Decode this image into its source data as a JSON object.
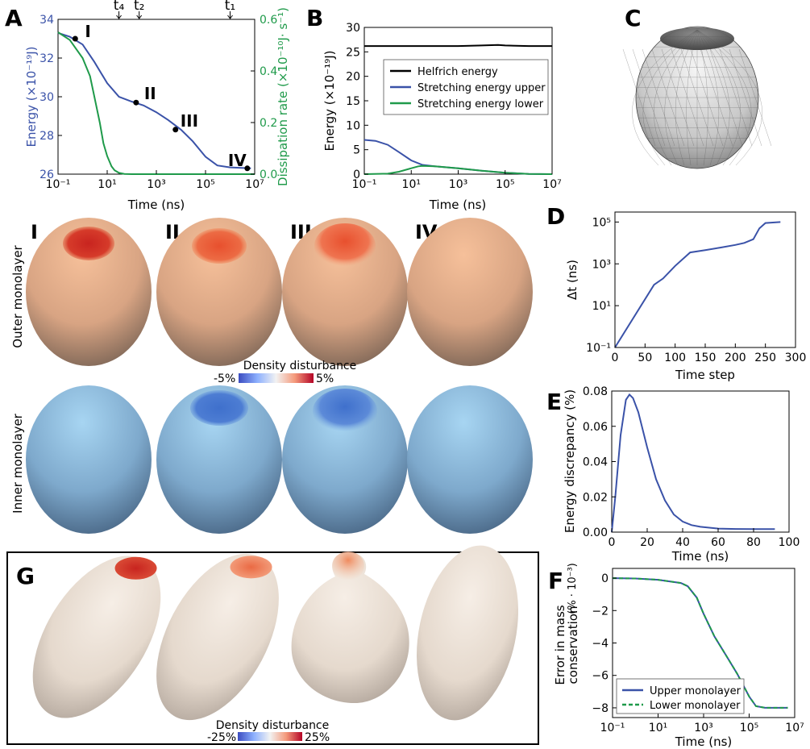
{
  "panels": {
    "A": {
      "label": "A",
      "xlabel": "Time (ns)",
      "ylabel_left": "Energy (×10⁻¹⁹J)",
      "ylabel_right": "Dissipation rate (×10⁻¹⁰J· s⁻¹)",
      "xticks": [
        "10⁻¹",
        "10¹",
        "10³",
        "10⁵",
        "10⁷"
      ],
      "yticks_left": [
        "26",
        "28",
        "30",
        "32",
        "34"
      ],
      "yticks_right": [
        "0.0",
        "0.2",
        "0.4",
        "0.6"
      ],
      "time_marks": [
        "t₄",
        "t₂",
        "t₁"
      ],
      "points": [
        "I",
        "II",
        "III",
        "IV"
      ],
      "colors": {
        "energy": "#3a52a8",
        "dissipation": "#1f9a4a"
      }
    },
    "B": {
      "label": "B",
      "xlabel": "Time (ns)",
      "ylabel": "Energy (×10⁻¹⁹J)",
      "xticks": [
        "10⁻¹",
        "10¹",
        "10³",
        "10⁵",
        "10⁷"
      ],
      "yticks": [
        "0",
        "5",
        "10",
        "15",
        "20",
        "25",
        "30"
      ],
      "legend": [
        "Helfrich energy",
        "Stretching energy upper",
        "Stretching energy lower"
      ],
      "colors": [
        "#000000",
        "#3a52a8",
        "#1f9a4a"
      ]
    },
    "C": {
      "label": "C"
    },
    "D": {
      "label": "D",
      "xlabel": "Time step",
      "ylabel": "Δt (ns)",
      "xticks": [
        "0",
        "50",
        "100",
        "150",
        "200",
        "250",
        "300"
      ],
      "yticks": [
        "10⁻¹",
        "10¹",
        "10³",
        "10⁵"
      ]
    },
    "E": {
      "label": "E",
      "xlabel": "Time (ns)",
      "ylabel": "Energy discrepancy (%)",
      "xticks": [
        "0",
        "20",
        "40",
        "60",
        "80",
        "100"
      ],
      "yticks": [
        "0.00",
        "0.02",
        "0.04",
        "0.06",
        "0.08"
      ]
    },
    "F": {
      "label": "F",
      "xlabel": "Time (ns)",
      "ylabel_line1": "Error in mass",
      "ylabel_line2": "conservation",
      "ylabel_unit": "(% · 10⁻³)",
      "xticks": [
        "10⁻¹",
        "10¹",
        "10³",
        "10⁵",
        "10⁷"
      ],
      "yticks": [
        "0",
        "−2",
        "−4",
        "−6",
        "−8"
      ],
      "legend": [
        "Upper monolayer",
        "Lower monolayer"
      ]
    },
    "G": {
      "label": "G",
      "colorbar_title": "Density disturbance",
      "colorbar_min": "-25%",
      "colorbar_max": "25%"
    }
  },
  "vesicles": {
    "stages": [
      "I",
      "II",
      "III",
      "IV"
    ],
    "outer_label": "Outer monolayer",
    "inner_label": "Inner monolayer",
    "colorbar_title": "Density disturbance",
    "colorbar_min": "-5%",
    "colorbar_max": "5%"
  },
  "chart_data": [
    {
      "panel": "A",
      "type": "line",
      "xscale": "log",
      "xlim": [
        0.1,
        10000000
      ],
      "series": [
        {
          "axis": "left",
          "ylim": [
            26,
            34
          ],
          "x": [
            0.1,
            0.3,
            1,
            3,
            10,
            30,
            100,
            300,
            1000,
            3000,
            10000,
            30000,
            100000,
            300000,
            1000000,
            3000000,
            7000000
          ],
          "y": [
            33.3,
            33.1,
            32.7,
            31.8,
            30.7,
            30.0,
            29.75,
            29.55,
            29.2,
            28.8,
            28.3,
            27.7,
            26.9,
            26.45,
            26.35,
            26.32,
            26.3
          ]
        },
        {
          "axis": "right",
          "ylim": [
            0,
            0.6
          ],
          "x": [
            0.1,
            0.3,
            1,
            2,
            3,
            5,
            7,
            10,
            15,
            20,
            30,
            50,
            100,
            1000,
            10000000
          ],
          "y": [
            0.55,
            0.52,
            0.45,
            0.38,
            0.3,
            0.2,
            0.12,
            0.07,
            0.03,
            0.015,
            0.005,
            0.001,
            0,
            0,
            0
          ]
        }
      ],
      "annotations": [
        {
          "text": "I",
          "x": 0.5,
          "y": 33.0
        },
        {
          "text": "II",
          "x": 150,
          "y": 29.7
        },
        {
          "text": "III",
          "x": 6000,
          "y": 28.3
        },
        {
          "text": "IV",
          "x": 5000000,
          "y": 26.3
        }
      ],
      "time_marks_x": [
        30,
        200,
        1000000
      ]
    },
    {
      "panel": "B",
      "type": "line",
      "xscale": "log",
      "xlim": [
        0.1,
        10000000
      ],
      "ylim": [
        0,
        30
      ],
      "series": [
        {
          "name": "Helfrich energy",
          "x": [
            0.1,
            1,
            10,
            100,
            1000,
            10000,
            50000,
            100000,
            1000000,
            10000000
          ],
          "y": [
            26.2,
            26.2,
            26.2,
            26.2,
            26.2,
            26.3,
            26.4,
            26.3,
            26.2,
            26.2
          ]
        },
        {
          "name": "Stretching energy upper",
          "x": [
            0.1,
            0.3,
            1,
            3,
            10,
            30,
            100,
            1000,
            10000,
            100000,
            1000000,
            10000000
          ],
          "y": [
            7.0,
            6.8,
            6.0,
            4.5,
            2.8,
            1.9,
            1.6,
            1.2,
            0.7,
            0.3,
            0.05,
            0
          ]
        },
        {
          "name": "Stretching energy lower",
          "x": [
            0.1,
            1,
            3,
            10,
            20,
            30,
            100,
            1000,
            10000,
            100000,
            1000000,
            10000000
          ],
          "y": [
            0,
            0.1,
            0.5,
            1.2,
            1.6,
            1.7,
            1.6,
            1.2,
            0.7,
            0.3,
            0.05,
            0
          ]
        }
      ]
    },
    {
      "panel": "D",
      "type": "line",
      "yscale": "log",
      "xlim": [
        0,
        300
      ],
      "ylim": [
        0.1,
        300000
      ],
      "series": [
        {
          "x": [
            0,
            65,
            80,
            100,
            125,
            150,
            175,
            200,
            215,
            230,
            240,
            250,
            275
          ],
          "y": [
            0.1,
            100,
            200,
            800,
            3500,
            4500,
            6000,
            8000,
            10000,
            15000,
            50000,
            90000,
            100000
          ]
        }
      ]
    },
    {
      "panel": "E",
      "type": "line",
      "xlim": [
        0,
        100
      ],
      "ylim": [
        0,
        0.08
      ],
      "series": [
        {
          "x": [
            0,
            2,
            5,
            8,
            10,
            12,
            15,
            20,
            25,
            30,
            35,
            40,
            45,
            50,
            60,
            70,
            80,
            92
          ],
          "y": [
            0,
            0.02,
            0.055,
            0.075,
            0.078,
            0.076,
            0.068,
            0.048,
            0.03,
            0.018,
            0.01,
            0.006,
            0.004,
            0.003,
            0.002,
            0.0018,
            0.0017,
            0.0017
          ]
        }
      ]
    },
    {
      "panel": "F",
      "type": "line",
      "xscale": "log",
      "xlim": [
        0.1,
        10000000
      ],
      "ylim": [
        -8.6,
        0.6
      ],
      "series": [
        {
          "name": "Upper monolayer",
          "x": [
            0.1,
            1,
            10,
            100,
            200,
            500,
            1000,
            3000,
            10000,
            30000,
            100000,
            200000,
            500000,
            1000000,
            5000000
          ],
          "y": [
            0,
            -0.02,
            -0.1,
            -0.3,
            -0.5,
            -1.2,
            -2.2,
            -3.6,
            -4.8,
            -5.9,
            -7.3,
            -7.9,
            -8.0,
            -8.0,
            -8.0
          ]
        },
        {
          "name": "Lower monolayer",
          "x": [
            0.1,
            1,
            10,
            100,
            200,
            500,
            1000,
            3000,
            10000,
            30000,
            100000,
            200000,
            500000,
            1000000,
            5000000
          ],
          "y": [
            0,
            -0.02,
            -0.1,
            -0.3,
            -0.5,
            -1.2,
            -2.2,
            -3.6,
            -4.8,
            -5.9,
            -7.3,
            -7.9,
            -8.0,
            -8.0,
            -8.0
          ]
        }
      ]
    }
  ]
}
